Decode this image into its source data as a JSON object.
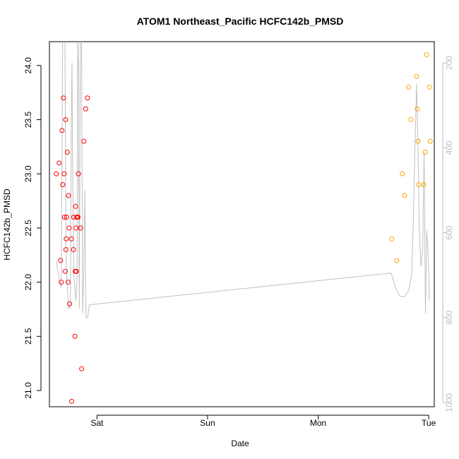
{
  "chart_data": {
    "type": "scatter",
    "title": "ATOM1 Northeast_Pacific HCFC142b_PMSD",
    "xlabel": "Date",
    "ylabel": "HCFC142b_PMSD",
    "x_ticks": [
      {
        "label": "Sat",
        "value": 1.0
      },
      {
        "label": "Sun",
        "value": 2.0
      },
      {
        "label": "Mon",
        "value": 3.0
      },
      {
        "label": "Tue",
        "value": 4.0
      }
    ],
    "xlim": [
      0.57,
      4.05
    ],
    "ylim": [
      20.85,
      24.22
    ],
    "y_ticks": [
      21.0,
      21.5,
      22.0,
      22.5,
      23.0,
      23.5,
      24.0
    ],
    "y_tick_labels": [
      "21.0",
      "21.5",
      "22.0",
      "22.5",
      "23.0",
      "23.5",
      "24.0"
    ],
    "y2_label": "",
    "y2_ticks": [
      200,
      400,
      600,
      800,
      1000
    ],
    "y2_tick_labels": [
      "200",
      "400",
      "600",
      "800",
      "1000"
    ],
    "y2_reversed": true,
    "y2lim": [
      1010,
      150
    ],
    "series": [
      {
        "color": "#ff0000",
        "marker": "open-circle",
        "points": [
          {
            "x": 0.632,
            "y": 23.0
          },
          {
            "x": 0.658,
            "y": 23.1
          },
          {
            "x": 0.671,
            "y": 22.2
          },
          {
            "x": 0.677,
            "y": 22.0
          },
          {
            "x": 0.684,
            "y": 23.4
          },
          {
            "x": 0.69,
            "y": 22.9
          },
          {
            "x": 0.697,
            "y": 23.7
          },
          {
            "x": 0.703,
            "y": 23.0
          },
          {
            "x": 0.706,
            "y": 22.6
          },
          {
            "x": 0.713,
            "y": 22.1
          },
          {
            "x": 0.716,
            "y": 23.5
          },
          {
            "x": 0.719,
            "y": 22.3
          },
          {
            "x": 0.722,
            "y": 22.4
          },
          {
            "x": 0.726,
            "y": 22.6
          },
          {
            "x": 0.732,
            "y": 23.2
          },
          {
            "x": 0.739,
            "y": 22.0
          },
          {
            "x": 0.742,
            "y": 22.8
          },
          {
            "x": 0.748,
            "y": 22.5
          },
          {
            "x": 0.752,
            "y": 21.8
          },
          {
            "x": 0.768,
            "y": 22.4
          },
          {
            "x": 0.771,
            "y": 20.9
          },
          {
            "x": 0.787,
            "y": 22.3
          },
          {
            "x": 0.79,
            "y": 22.6
          },
          {
            "x": 0.8,
            "y": 21.5
          },
          {
            "x": 0.803,
            "y": 22.1
          },
          {
            "x": 0.806,
            "y": 22.7
          },
          {
            "x": 0.81,
            "y": 22.5
          },
          {
            "x": 0.813,
            "y": 22.1
          },
          {
            "x": 0.816,
            "y": 22.6
          },
          {
            "x": 0.823,
            "y": 22.6
          },
          {
            "x": 0.829,
            "y": 22.6
          },
          {
            "x": 0.832,
            "y": 23.0
          },
          {
            "x": 0.852,
            "y": 22.5
          },
          {
            "x": 0.861,
            "y": 21.2
          },
          {
            "x": 0.881,
            "y": 23.3
          },
          {
            "x": 0.897,
            "y": 23.6
          },
          {
            "x": 0.913,
            "y": 23.7
          }
        ]
      },
      {
        "color": "#ffa500",
        "marker": "open-circle",
        "points": [
          {
            "x": 3.665,
            "y": 22.4
          },
          {
            "x": 3.71,
            "y": 22.2
          },
          {
            "x": 3.761,
            "y": 23.0
          },
          {
            "x": 3.781,
            "y": 22.8
          },
          {
            "x": 3.819,
            "y": 23.8
          },
          {
            "x": 3.839,
            "y": 23.5
          },
          {
            "x": 3.89,
            "y": 23.9
          },
          {
            "x": 3.897,
            "y": 23.6
          },
          {
            "x": 3.903,
            "y": 23.3
          },
          {
            "x": 3.91,
            "y": 22.9
          },
          {
            "x": 3.955,
            "y": 22.9
          },
          {
            "x": 3.968,
            "y": 23.2
          },
          {
            "x": 3.981,
            "y": 24.1
          },
          {
            "x": 4.006,
            "y": 23.8
          },
          {
            "x": 4.013,
            "y": 23.3
          }
        ]
      }
    ],
    "secondary_line": {
      "color": "#c0c0c0",
      "axis": "right",
      "points": [
        {
          "x": 0.632,
          "y": 666
        },
        {
          "x": 0.658,
          "y": 710
        },
        {
          "x": 0.677,
          "y": 730
        },
        {
          "x": 0.69,
          "y": 120
        },
        {
          "x": 0.71,
          "y": 120
        },
        {
          "x": 0.72,
          "y": 660
        },
        {
          "x": 0.73,
          "y": 720
        },
        {
          "x": 0.745,
          "y": 780
        },
        {
          "x": 0.76,
          "y": 770
        },
        {
          "x": 0.768,
          "y": 350
        },
        {
          "x": 0.774,
          "y": 200
        },
        {
          "x": 0.78,
          "y": 450
        },
        {
          "x": 0.79,
          "y": 700
        },
        {
          "x": 0.8,
          "y": 730
        },
        {
          "x": 0.81,
          "y": 760
        },
        {
          "x": 0.82,
          "y": 700
        },
        {
          "x": 0.826,
          "y": 120
        },
        {
          "x": 0.832,
          "y": 200
        },
        {
          "x": 0.84,
          "y": 780
        },
        {
          "x": 0.85,
          "y": 120
        },
        {
          "x": 0.86,
          "y": 120
        },
        {
          "x": 0.87,
          "y": 790
        },
        {
          "x": 0.88,
          "y": 700
        },
        {
          "x": 0.89,
          "y": 500
        },
        {
          "x": 0.9,
          "y": 800
        },
        {
          "x": 0.915,
          "y": 800
        },
        {
          "x": 0.93,
          "y": 770
        },
        {
          "x": 3.66,
          "y": 695
        },
        {
          "x": 3.7,
          "y": 730
        },
        {
          "x": 3.74,
          "y": 750
        },
        {
          "x": 3.785,
          "y": 750
        },
        {
          "x": 3.82,
          "y": 735
        },
        {
          "x": 3.845,
          "y": 700
        },
        {
          "x": 3.86,
          "y": 580
        },
        {
          "x": 3.875,
          "y": 400
        },
        {
          "x": 3.89,
          "y": 250
        },
        {
          "x": 3.903,
          "y": 400
        },
        {
          "x": 3.915,
          "y": 600
        },
        {
          "x": 3.93,
          "y": 680
        },
        {
          "x": 3.945,
          "y": 640
        },
        {
          "x": 3.958,
          "y": 410
        },
        {
          "x": 3.97,
          "y": 790
        },
        {
          "x": 3.981,
          "y": 595
        },
        {
          "x": 3.993,
          "y": 640
        },
        {
          "x": 4.006,
          "y": 760
        }
      ]
    }
  }
}
